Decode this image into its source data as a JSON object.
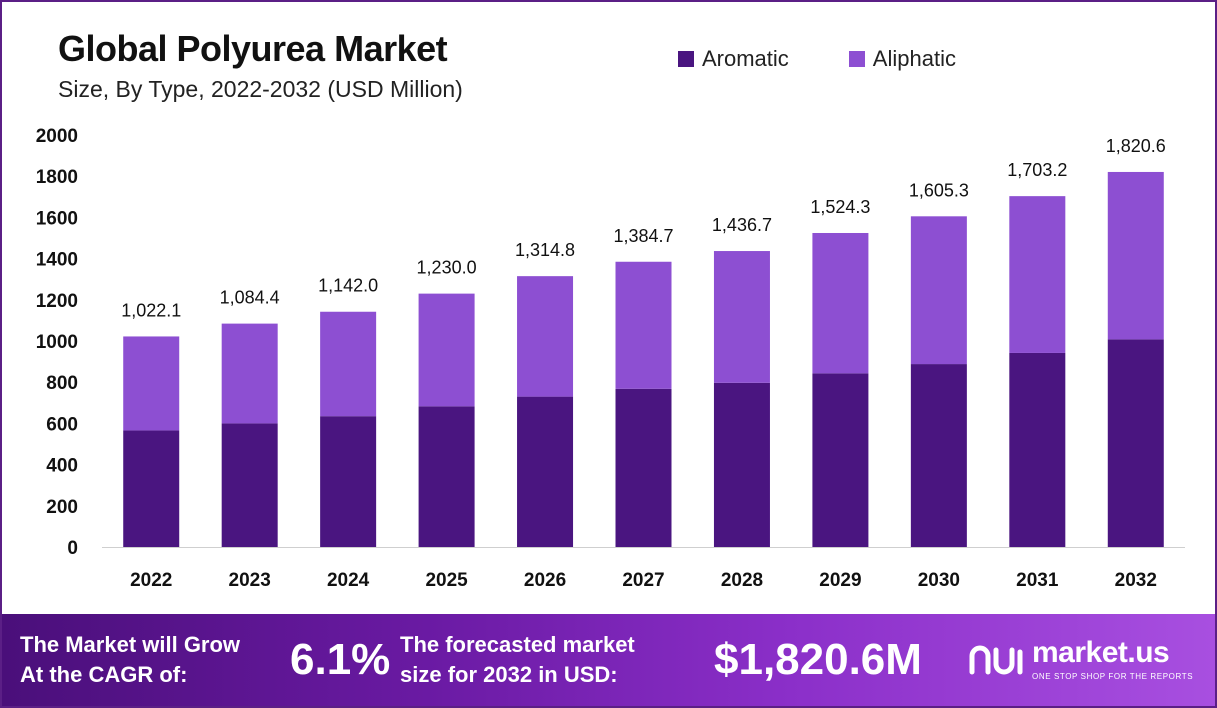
{
  "header": {
    "title": "Global Polyurea Market",
    "subtitle": "Size, By Type, 2022-2032 (USD Million)"
  },
  "legend": [
    {
      "label": "Aromatic",
      "color": "#4a1580"
    },
    {
      "label": "Aliphatic",
      "color": "#8d4fd2"
    }
  ],
  "chart_data": {
    "type": "bar",
    "stacked": true,
    "categories": [
      "2022",
      "2023",
      "2024",
      "2025",
      "2026",
      "2027",
      "2028",
      "2029",
      "2030",
      "2031",
      "2032"
    ],
    "series": [
      {
        "name": "Aromatic",
        "color": "#4a1580",
        "values": [
          566,
          600,
          635,
          683,
          730,
          768,
          797,
          843,
          888,
          942,
          1008
        ]
      },
      {
        "name": "Aliphatic",
        "color": "#8d4fd2",
        "values": [
          456.1,
          484.4,
          507.0,
          547.0,
          584.8,
          616.7,
          639.7,
          681.3,
          717.3,
          761.2,
          812.6
        ]
      }
    ],
    "total_labels": [
      "1,022.1",
      "1,084.4",
      "1,142.0",
      "1,230.0",
      "1,314.8",
      "1,384.7",
      "1,436.7",
      "1,524.3",
      "1,605.3",
      "1,703.2",
      "1,820.6"
    ],
    "yticks": [
      0,
      200,
      400,
      600,
      800,
      1000,
      1200,
      1400,
      1600,
      1800,
      2000
    ],
    "ylim": [
      0,
      2000
    ],
    "grid": false,
    "legend_position": "top-right"
  },
  "footer": {
    "cagr_line1": "The Market will Grow",
    "cagr_line2": "At the CAGR of:",
    "cagr_value": "6.1%",
    "forecast_line1": "The forecasted market",
    "forecast_line2": "size for 2032 in USD:",
    "forecast_value": "$1,820.6M",
    "brand_name": "market.us",
    "brand_tagline": "ONE STOP SHOP FOR THE REPORTS"
  }
}
